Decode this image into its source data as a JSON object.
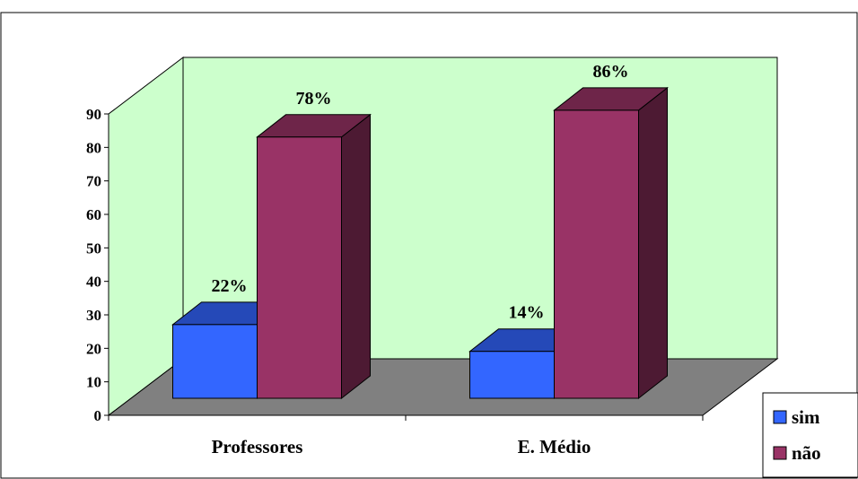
{
  "chart_data": {
    "type": "bar",
    "categories": [
      "Professores",
      "E. Médio"
    ],
    "series": [
      {
        "name": "sim",
        "values": [
          22,
          14
        ],
        "labels": [
          "22%",
          "14%"
        ],
        "color": "#3366ff"
      },
      {
        "name": "não",
        "values": [
          78,
          86
        ],
        "labels": [
          "78%",
          "86%"
        ],
        "color": "#993366"
      }
    ],
    "ylim": [
      0,
      90
    ],
    "yticks": [
      "0",
      "10",
      "20",
      "30",
      "40",
      "50",
      "60",
      "70",
      "80",
      "90"
    ],
    "grid": false,
    "legend_position": "bottom-right",
    "wall_color": "#ccffcc",
    "floor_color": "#808080"
  }
}
